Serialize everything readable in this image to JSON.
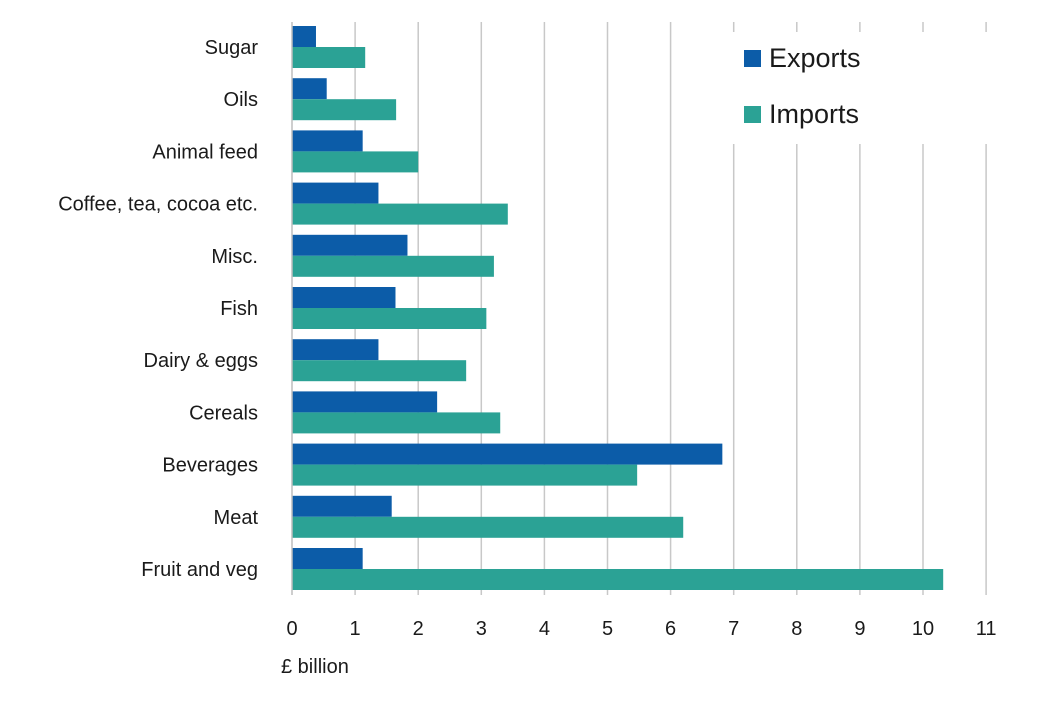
{
  "chart_data": {
    "type": "bar",
    "orientation": "horizontal",
    "categories": [
      "Sugar",
      "Oils",
      "Animal feed",
      "Coffee, tea, cocoa etc.",
      "Misc.",
      "Fish",
      "Dairy & eggs",
      "Cereals",
      "Beverages",
      "Meat",
      "Fruit and veg"
    ],
    "series": [
      {
        "name": "Exports",
        "color": "#0c5ca8",
        "values": [
          0.38,
          0.55,
          1.12,
          1.37,
          1.83,
          1.64,
          1.37,
          2.3,
          6.82,
          1.58,
          1.12
        ]
      },
      {
        "name": "Imports",
        "color": "#2ba295",
        "values": [
          1.16,
          1.65,
          2.0,
          3.42,
          3.2,
          3.08,
          2.76,
          3.3,
          5.47,
          6.2,
          10.32
        ]
      }
    ],
    "xlabel": "£ billion",
    "ylabel": "",
    "xlim": [
      0,
      11
    ],
    "xticks": [
      "0",
      "1",
      "2",
      "3",
      "4",
      "5",
      "6",
      "7",
      "8",
      "9",
      "10",
      "11"
    ],
    "grid": true,
    "legend_position": "top-right"
  }
}
